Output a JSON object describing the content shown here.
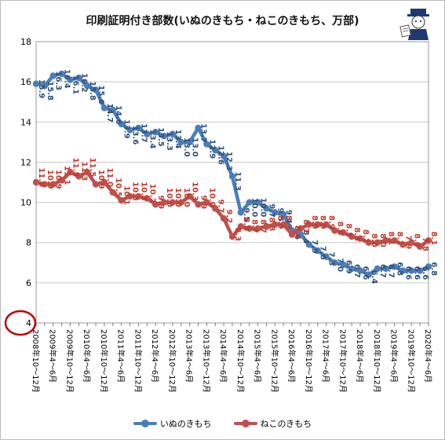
{
  "chart_data": {
    "type": "line",
    "title": "印刷証明付き部数(いぬのきもち・ねこのきもち、万部)",
    "ylim": [
      4,
      18
    ],
    "yticks": [
      4,
      6,
      8,
      10,
      12,
      14,
      16,
      18
    ],
    "categories": [
      "2008年10〜12月",
      "",
      "2009年4〜6月",
      "",
      "2009年10〜12月",
      "",
      "2010年4〜6月",
      "",
      "2010年10〜12月",
      "",
      "2011年4〜6月",
      "",
      "2011年10〜12月",
      "",
      "2012年4〜6月",
      "",
      "2012年10〜12月",
      "",
      "2013年4〜6月",
      "",
      "2013年10〜12月",
      "",
      "2014年4〜6月",
      "",
      "2014年10〜12月",
      "",
      "2015年4〜6月",
      "",
      "2015年10〜12月",
      "",
      "2016年4〜6月",
      "",
      "2016年10〜12月",
      "",
      "2017年4〜6月",
      "",
      "2017年10〜12月",
      "",
      "2018年4〜6月",
      "",
      "2018年10〜12月",
      "",
      "2019年4〜6月",
      "",
      "2019年10〜12月",
      "",
      "2020年4〜6月"
    ],
    "series": [
      {
        "name": "いぬのきもち",
        "color": "#4a7ebb",
        "values": [
          15.9,
          15.8,
          16.3,
          16.4,
          16.1,
          16.2,
          15.8,
          15.6,
          14.7,
          14.6,
          13.9,
          13.6,
          13.7,
          13.4,
          13.5,
          13.3,
          13.4,
          13.0,
          13.0,
          13.7,
          12.9,
          12.6,
          12.3,
          11.3,
          9.5,
          10.0,
          10.0,
          9.7,
          9.5,
          9.4,
          8.6,
          8.4,
          7.9,
          7.6,
          7.3,
          7.0,
          6.9,
          6.7,
          6.6,
          6.4,
          6.7,
          6.7,
          6.8,
          6.6,
          6.6,
          6.6,
          6.8
        ]
      },
      {
        "name": "ねこのきもち",
        "color": "#c0504d",
        "values": [
          11.0,
          10.9,
          10.9,
          11.1,
          11.5,
          11.3,
          11.5,
          10.9,
          11.0,
          10.5,
          10.1,
          10.3,
          10.3,
          10.2,
          9.9,
          10.0,
          10.0,
          10.0,
          10.3,
          9.9,
          10.0,
          9.7,
          9.2,
          8.3,
          8.8,
          8.7,
          8.7,
          8.8,
          8.9,
          8.9,
          8.4,
          8.7,
          8.9,
          8.9,
          8.9,
          8.6,
          8.5,
          8.3,
          8.2,
          8.0,
          8.0,
          8.1,
          8.1,
          7.9,
          8.0,
          7.8,
          8.1
        ]
      }
    ],
    "grid": "horizontal",
    "legend_position": "bottom",
    "highlight_circle_color": "#c00000"
  }
}
